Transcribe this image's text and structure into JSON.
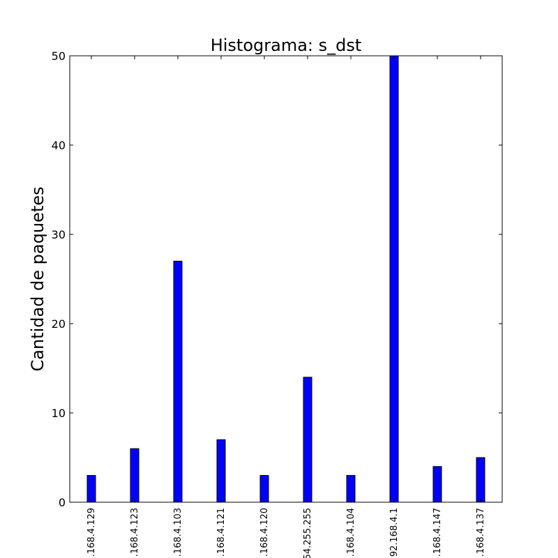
{
  "chart_data": {
    "type": "bar",
    "title": "Histograma: s_dst",
    "xlabel": "",
    "ylabel": "Cantidad de paquetes",
    "categories": [
      ".168.4.129",
      ".168.4.123",
      ".168.4.103",
      ".168.4.121",
      ".168.4.120",
      "54.255.255",
      ".168.4.104",
      "92.168.4.1",
      ".168.4.147",
      ".168.4.137"
    ],
    "values": [
      3,
      6,
      27,
      7,
      3,
      14,
      3,
      50,
      4,
      5
    ],
    "ylim": [
      0,
      50
    ],
    "yticks": [
      0,
      10,
      20,
      30,
      40,
      50
    ],
    "bar_color": "#0000ff",
    "grid": false,
    "legend": "none"
  }
}
